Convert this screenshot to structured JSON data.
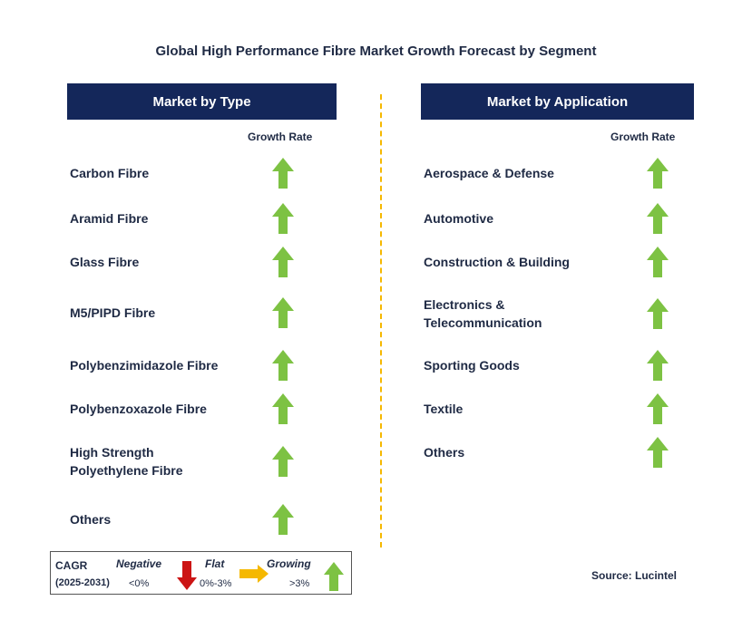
{
  "title": "Global High Performance Fibre Market Growth Forecast by Segment",
  "left_panel": {
    "header": "Market by Type",
    "growth_label": "Growth Rate",
    "items": [
      {
        "label": "Carbon Fibre",
        "trend": "growing"
      },
      {
        "label": "Aramid Fibre",
        "trend": "growing"
      },
      {
        "label": "Glass Fibre",
        "trend": "growing"
      },
      {
        "label": "M5/PIPD Fibre",
        "trend": "growing"
      },
      {
        "label": "Polybenzimidazole Fibre",
        "trend": "growing"
      },
      {
        "label": "Polybenzoxazole Fibre",
        "trend": "growing"
      },
      {
        "label": "High Strength\nPolyethylene Fibre",
        "trend": "growing"
      },
      {
        "label": "Others",
        "trend": "growing"
      }
    ]
  },
  "right_panel": {
    "header": "Market by Application",
    "growth_label": "Growth Rate",
    "items": [
      {
        "label": "Aerospace & Defense",
        "trend": "growing"
      },
      {
        "label": "Automotive",
        "trend": "growing"
      },
      {
        "label": "Construction & Building",
        "trend": "growing"
      },
      {
        "label": "Electronics &\nTelecommunication",
        "trend": "growing"
      },
      {
        "label": "Sporting Goods",
        "trend": "growing"
      },
      {
        "label": "Textile",
        "trend": "growing"
      },
      {
        "label": "Others",
        "trend": "growing"
      }
    ]
  },
  "legend": {
    "cagr_label": "CAGR",
    "period": "(2025-2031)",
    "negative": {
      "label": "Negative",
      "range": "<0%"
    },
    "flat": {
      "label": "Flat",
      "range": "0%-3%"
    },
    "growing": {
      "label": "Growing",
      "range": ">3%"
    }
  },
  "source": "Source: Lucintel",
  "colors": {
    "header_bg": "#14275a",
    "text": "#1f2a44",
    "growing_arrow": "#7dc243",
    "negative_arrow": "#cc1414",
    "flat_arrow": "#f5b800",
    "divider": "#f5b800"
  }
}
